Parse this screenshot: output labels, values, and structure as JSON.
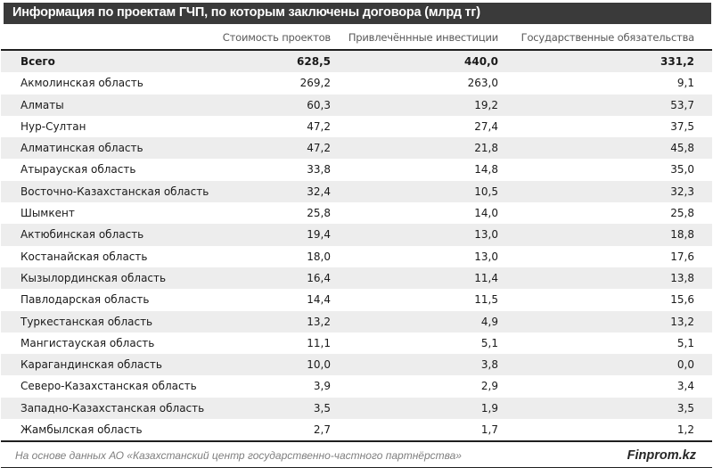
{
  "title": "Информация по проектам ГЧП, по которым заключены договора (млрд тг)",
  "columns": {
    "region": "",
    "cost": "Стоимость проектов",
    "investments": "Привлечённные инвестиции",
    "obligations": "Государственные обязательства"
  },
  "total_row": {
    "label": "Всего",
    "values": [
      "628,5",
      "440,0",
      "331,2"
    ]
  },
  "rows": [
    {
      "label": "Акмолинская область",
      "values": [
        "269,2",
        "263,0",
        "9,1"
      ]
    },
    {
      "label": "Алматы",
      "values": [
        "60,3",
        "19,2",
        "53,7"
      ]
    },
    {
      "label": "Нур-Султан",
      "values": [
        "47,2",
        "27,4",
        "37,5"
      ]
    },
    {
      "label": "Алматинская область",
      "values": [
        "47,2",
        "21,8",
        "45,8"
      ]
    },
    {
      "label": "Атырауская область",
      "values": [
        "33,8",
        "14,8",
        "35,0"
      ]
    },
    {
      "label": "Восточно-Казахстанская область",
      "values": [
        "32,4",
        "10,5",
        "32,3"
      ]
    },
    {
      "label": "Шымкент",
      "values": [
        "25,8",
        "14,0",
        "25,8"
      ]
    },
    {
      "label": "Актюбинская область",
      "values": [
        "19,4",
        "13,0",
        "18,8"
      ]
    },
    {
      "label": "Костанайская область",
      "values": [
        "18,0",
        "13,0",
        "17,6"
      ]
    },
    {
      "label": "Кызылординская область",
      "values": [
        "16,4",
        "11,4",
        "13,8"
      ]
    },
    {
      "label": "Павлодарская область",
      "values": [
        "14,4",
        "11,5",
        "15,6"
      ]
    },
    {
      "label": "Туркестанская область",
      "values": [
        "13,2",
        "4,9",
        "13,2"
      ]
    },
    {
      "label": "Мангистауская область",
      "values": [
        "11,1",
        "5,1",
        "5,1"
      ]
    },
    {
      "label": "Карагандинская область",
      "values": [
        "10,0",
        "3,8",
        "0,0"
      ]
    },
    {
      "label": "Северо-Казахстанская область",
      "values": [
        "3,9",
        "2,9",
        "3,4"
      ]
    },
    {
      "label": "Западно-Казахстанская область",
      "values": [
        "3,5",
        "1,9",
        "3,5"
      ]
    },
    {
      "label": "Жамбылская область",
      "values": [
        "2,7",
        "1,7",
        "1,2"
      ]
    }
  ],
  "footer": {
    "source": "На основе данных АО «Казахстанский центр государственно-частного партнёрства»",
    "brand": "Finprom.kz"
  },
  "colors": {
    "title_bar": "#3a3a3a",
    "title_text": "#ffffff",
    "stripe": "#ededed",
    "header_text": "#595959",
    "body_text": "#1a1a1a",
    "rule": "#1f1f1f",
    "footer_text": "#7f7f7f"
  },
  "chart_data": {
    "type": "table",
    "title": "Информация по проектам ГЧП, по которым заключены договора (млрд тг)",
    "categories": [
      "Всего",
      "Акмолинская область",
      "Алматы",
      "Нур-Султан",
      "Алматинская область",
      "Атырауская область",
      "Восточно-Казахстанская область",
      "Шымкент",
      "Актюбинская область",
      "Костанайская область",
      "Кызылординская область",
      "Павлодарская область",
      "Туркестанская область",
      "Мангистауская область",
      "Карагандинская область",
      "Северо-Казахстанская область",
      "Западно-Казахстанская область",
      "Жамбылская область"
    ],
    "series": [
      {
        "name": "Стоимость проектов",
        "values": [
          628.5,
          269.2,
          60.3,
          47.2,
          47.2,
          33.8,
          32.4,
          25.8,
          19.4,
          18.0,
          16.4,
          14.4,
          13.2,
          11.1,
          10.0,
          3.9,
          3.5,
          2.7
        ]
      },
      {
        "name": "Привлечённные инвестиции",
        "values": [
          440.0,
          263.0,
          19.2,
          27.4,
          21.8,
          14.8,
          10.5,
          14.0,
          13.0,
          13.0,
          11.4,
          11.5,
          4.9,
          5.1,
          3.8,
          2.9,
          1.9,
          1.7
        ]
      },
      {
        "name": "Государственные обязательства",
        "values": [
          331.2,
          9.1,
          53.7,
          37.5,
          45.8,
          35.0,
          32.3,
          25.8,
          18.8,
          17.6,
          13.8,
          15.6,
          13.2,
          5.1,
          0.0,
          3.4,
          3.5,
          1.2
        ]
      }
    ],
    "units": "млрд тг",
    "source": "На основе данных АО «Казахстанский центр государственно-частного партнёрства»"
  }
}
